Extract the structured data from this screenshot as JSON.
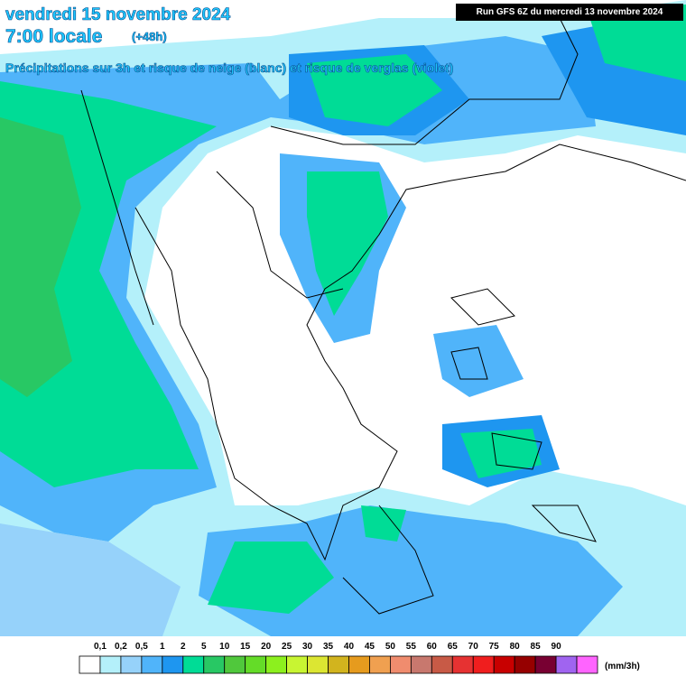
{
  "header": {
    "date": "vendredi 15 novembre 2024",
    "time": "7:00 locale",
    "lead": "(+48h)",
    "subtitle": "Précipitations sur 3h et risque de neige (blanc) et risque de verglas (violet)",
    "run": "Run GFS 6Z du mercredi 13 novembre 2024"
  },
  "legend": {
    "unit": "(mm/3h)",
    "labels": [
      "0,1",
      "0,2",
      "0,5",
      "1",
      "2",
      "5",
      "10",
      "15",
      "20",
      "25",
      "30",
      "35",
      "40",
      "45",
      "50",
      "55",
      "60",
      "65",
      "70",
      "75",
      "80",
      "85",
      "90"
    ],
    "colors": [
      "#ffffff",
      "#b4f0fa",
      "#96d2fa",
      "#50b4fa",
      "#1e96f0",
      "#00dc96",
      "#28c864",
      "#50c83c",
      "#64dc28",
      "#8cf01e",
      "#c8f532",
      "#dce632",
      "#d2b41e",
      "#e69b1e",
      "#f0a050",
      "#f08c6e",
      "#c8786e",
      "#c85a46",
      "#e63232",
      "#f01e1e",
      "#c80000",
      "#960000",
      "#780032",
      "#a064f0",
      "#ff64ff"
    ]
  }
}
